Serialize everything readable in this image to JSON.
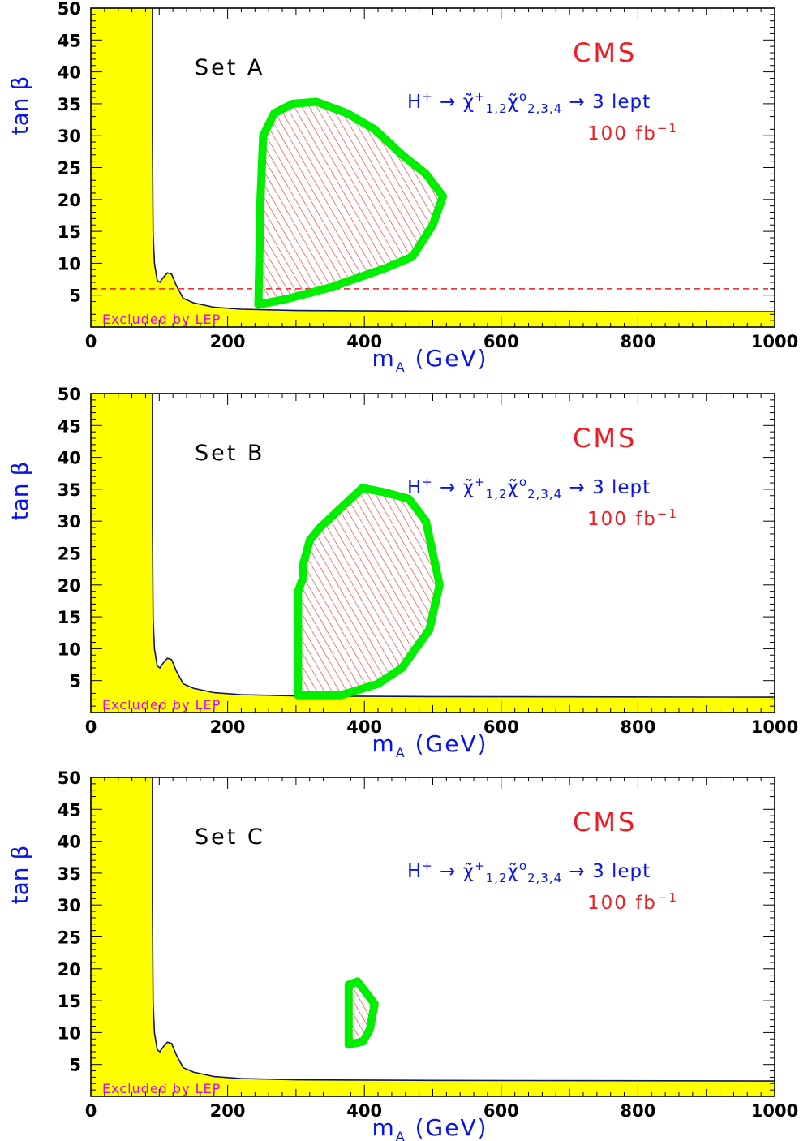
{
  "colors": {
    "excluded_fill": "#ffff00",
    "contour": "#00ee00",
    "hatch": "#e03a3a",
    "boundary_line": "#0a1464",
    "text_blue": "#0a14e6",
    "text_red": "#ee1c24",
    "lep_text": "#e600e6"
  },
  "chart_data": [
    {
      "type": "area",
      "set_label": "Set A",
      "experiment_label": "CMS",
      "process_label": "H⁺ → χ̃⁺₁,₂ χ̃⁰₂,₃,₄ → 3 lept",
      "lumi_label": "100 fb⁻¹",
      "excluded_label": "Excluded by LEP",
      "xlabel": "m_A (GeV)",
      "ylabel": "tan β",
      "xlim": [
        0,
        1000
      ],
      "ylim": [
        0,
        50
      ],
      "xticks": [
        0,
        200,
        400,
        600,
        800,
        1000
      ],
      "yticks": [
        5,
        10,
        15,
        20,
        25,
        30,
        35,
        40,
        45,
        50
      ],
      "excluded_boundary": [
        [
          90,
          50
        ],
        [
          90,
          30
        ],
        [
          91,
          15
        ],
        [
          93,
          10
        ],
        [
          97,
          7.3
        ],
        [
          101,
          7.0
        ],
        [
          106,
          7.8
        ],
        [
          112,
          8.5
        ],
        [
          118,
          8.3
        ],
        [
          125,
          6.5
        ],
        [
          135,
          4.5
        ],
        [
          150,
          3.8
        ],
        [
          180,
          3.1
        ],
        [
          220,
          2.8
        ],
        [
          300,
          2.6
        ],
        [
          500,
          2.5
        ],
        [
          1000,
          2.4
        ]
      ],
      "discovery_contour": [
        [
          245,
          3.5
        ],
        [
          248,
          20
        ],
        [
          252,
          30
        ],
        [
          268,
          33.5
        ],
        [
          295,
          35
        ],
        [
          330,
          35.3
        ],
        [
          375,
          33.5
        ],
        [
          415,
          31
        ],
        [
          455,
          27
        ],
        [
          490,
          24
        ],
        [
          515,
          20.5
        ],
        [
          500,
          16
        ],
        [
          470,
          11
        ],
        [
          430,
          9.2
        ],
        [
          350,
          6.2
        ],
        [
          290,
          4.5
        ],
        [
          245,
          3.5
        ]
      ],
      "dashed_line_tanb": 6
    },
    {
      "type": "area",
      "set_label": "Set B",
      "experiment_label": "CMS",
      "process_label": "H⁺ → χ̃⁺₁,₂ χ̃⁰₂,₃,₄ → 3 lept",
      "lumi_label": "100 fb⁻¹",
      "excluded_label": "Excluded by LEP",
      "xlabel": "m_A (GeV)",
      "ylabel": "tan β",
      "xlim": [
        0,
        1000
      ],
      "ylim": [
        0,
        50
      ],
      "xticks": [
        0,
        200,
        400,
        600,
        800,
        1000
      ],
      "yticks": [
        5,
        10,
        15,
        20,
        25,
        30,
        35,
        40,
        45,
        50
      ],
      "excluded_boundary": [
        [
          90,
          50
        ],
        [
          90,
          30
        ],
        [
          91,
          15
        ],
        [
          93,
          10
        ],
        [
          97,
          7.3
        ],
        [
          101,
          7.0
        ],
        [
          106,
          7.8
        ],
        [
          112,
          8.5
        ],
        [
          118,
          8.3
        ],
        [
          125,
          6.5
        ],
        [
          135,
          4.5
        ],
        [
          150,
          3.8
        ],
        [
          180,
          3.1
        ],
        [
          220,
          2.8
        ],
        [
          300,
          2.6
        ],
        [
          500,
          2.5
        ],
        [
          1000,
          2.4
        ]
      ],
      "discovery_contour": [
        [
          303,
          2.7
        ],
        [
          303,
          19
        ],
        [
          310,
          21
        ],
        [
          310,
          23
        ],
        [
          320,
          27
        ],
        [
          335,
          29
        ],
        [
          355,
          31
        ],
        [
          380,
          33.5
        ],
        [
          397,
          35.2
        ],
        [
          430,
          34.5
        ],
        [
          465,
          33.5
        ],
        [
          490,
          30
        ],
        [
          500,
          25
        ],
        [
          510,
          20
        ],
        [
          495,
          13
        ],
        [
          455,
          7
        ],
        [
          420,
          4.5
        ],
        [
          365,
          2.7
        ],
        [
          303,
          2.7
        ]
      ],
      "dashed_line_tanb": null
    },
    {
      "type": "area",
      "set_label": "Set C",
      "experiment_label": "CMS",
      "process_label": "H⁺ → χ̃⁺₁,₂ χ̃⁰₂,₃,₄ → 3 lept",
      "lumi_label": "100 fb⁻¹",
      "excluded_label": "Excluded by LEP",
      "xlabel": "m_A (GeV)",
      "ylabel": "tan β",
      "xlim": [
        0,
        1000
      ],
      "ylim": [
        0,
        50
      ],
      "xticks": [
        0,
        200,
        400,
        600,
        800,
        1000
      ],
      "yticks": [
        5,
        10,
        15,
        20,
        25,
        30,
        35,
        40,
        45,
        50
      ],
      "excluded_boundary": [
        [
          90,
          50
        ],
        [
          90,
          30
        ],
        [
          91,
          15
        ],
        [
          93,
          10
        ],
        [
          97,
          7.3
        ],
        [
          101,
          7.0
        ],
        [
          106,
          7.8
        ],
        [
          112,
          8.5
        ],
        [
          118,
          8.3
        ],
        [
          125,
          6.5
        ],
        [
          135,
          4.5
        ],
        [
          150,
          3.8
        ],
        [
          180,
          3.1
        ],
        [
          220,
          2.8
        ],
        [
          300,
          2.6
        ],
        [
          500,
          2.5
        ],
        [
          1000,
          2.4
        ]
      ],
      "discovery_contour": [
        [
          377,
          8.1
        ],
        [
          377,
          17.5
        ],
        [
          390,
          18
        ],
        [
          415,
          14.5
        ],
        [
          408,
          10.5
        ],
        [
          398,
          8.6
        ],
        [
          377,
          8.1
        ]
      ],
      "dashed_line_tanb": null
    }
  ]
}
